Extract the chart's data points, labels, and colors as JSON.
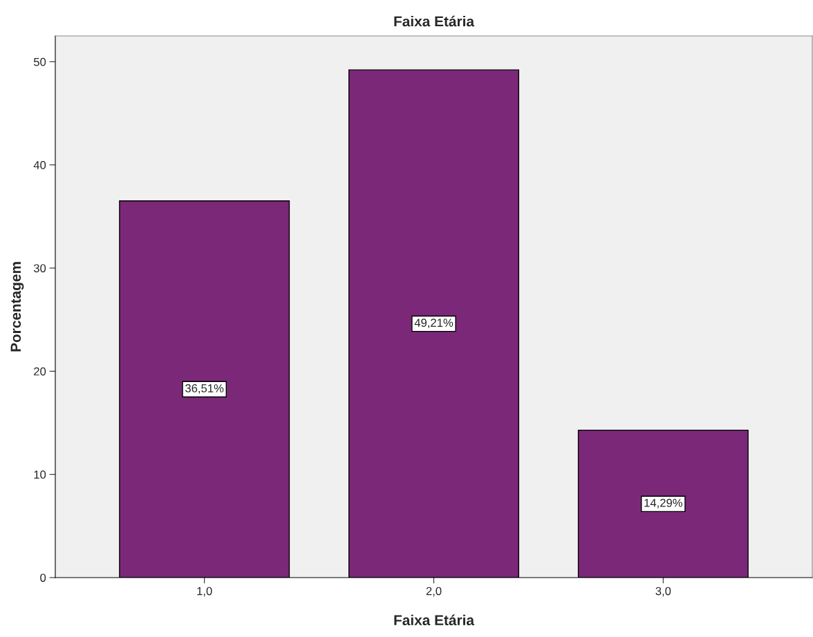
{
  "chart_data": {
    "type": "bar",
    "title": "Faixa Etária",
    "xlabel": "Faixa Etária",
    "ylabel": "Porcentagem",
    "categories": [
      "1,0",
      "2,0",
      "3,0"
    ],
    "values": [
      36.51,
      49.21,
      14.29
    ],
    "value_labels": [
      "36,51%",
      "49,21%",
      "14,29%"
    ],
    "color": "#7b2879",
    "ylim": [
      0,
      52.5
    ],
    "yticks": [
      0,
      10,
      20,
      30,
      40,
      50
    ],
    "grid": false,
    "legend": false
  }
}
